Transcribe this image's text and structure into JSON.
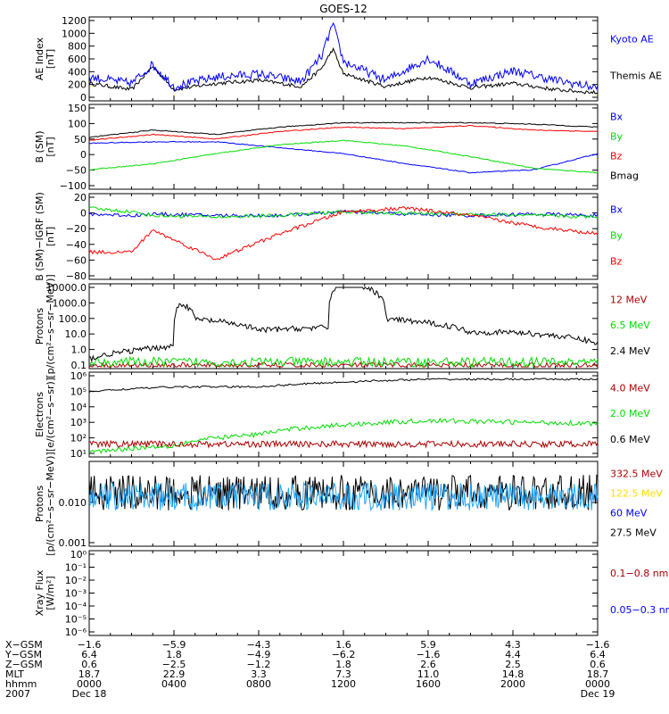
{
  "title": "GOES-12",
  "colors": {
    "black": "#000000",
    "blue": "#0000ff",
    "red": "#ff0000",
    "green": "#00dd00",
    "darkred": "#aa0000",
    "cyan": "#1fa7ff",
    "gold": "#ffdd00"
  },
  "panels": [
    {
      "id": "ae",
      "ylabel": [
        "AE Index",
        "[nT]"
      ],
      "ticks": [
        "1200",
        "1000",
        "800",
        "600",
        "400",
        "200",
        "0"
      ],
      "legend": [
        {
          "label": "Kyoto AE",
          "color": "#0000ff"
        },
        {
          "label": "Themis AE",
          "color": "#000000"
        }
      ]
    },
    {
      "id": "b",
      "ylabel": [
        "B (SM)",
        "[nT]"
      ],
      "ticks": [
        "150",
        "100",
        "50",
        "0",
        "−50",
        "−100"
      ],
      "legend": [
        {
          "label": "Bx",
          "color": "#0000ff"
        },
        {
          "label": "By",
          "color": "#00dd00"
        },
        {
          "label": "Bz",
          "color": "#ff0000"
        },
        {
          "label": "Bmag",
          "color": "#000000"
        }
      ]
    },
    {
      "id": "bdiff",
      "ylabel": [
        "B (SM)−IGRF (SM)",
        "[nT]"
      ],
      "ticks": [
        "20",
        "0",
        "−20",
        "−40",
        "−60",
        "−80"
      ],
      "legend": [
        {
          "label": "Bx",
          "color": "#0000ff"
        },
        {
          "label": "By",
          "color": "#00dd00"
        },
        {
          "label": "Bz",
          "color": "#ff0000"
        }
      ]
    },
    {
      "id": "protons",
      "ylabel": [
        "Protons",
        "[p/(cm²−s−sr−MeV)]"
      ],
      "ticks": [
        "10000.0",
        "1000.0",
        "100.0",
        "10.0",
        "1.0",
        "0.1"
      ],
      "legend": [
        {
          "label": "12 MeV",
          "color": "#aa0000"
        },
        {
          "label": "6.5 MeV",
          "color": "#00dd00"
        },
        {
          "label": "2.4 MeV",
          "color": "#000000"
        }
      ]
    },
    {
      "id": "electrons",
      "ylabel": [
        "Electrons",
        "[e/(cm²−s−sr)]"
      ],
      "ticks": [
        "10⁶",
        "10⁵",
        "10⁴",
        "10³",
        "10²",
        "10¹"
      ],
      "legend": [
        {
          "label": "4.0 MeV",
          "color": "#aa0000"
        },
        {
          "label": "2.0 MeV",
          "color": "#00dd00"
        },
        {
          "label": "0.6 MeV",
          "color": "#000000"
        }
      ]
    },
    {
      "id": "hiprotons",
      "ylabel": [
        "Protons",
        "[p/(cm²−s−sr−MeV)]"
      ],
      "ticks": [
        "0.010",
        "0.001"
      ],
      "legend": [
        {
          "label": "332.5 MeV",
          "color": "#aa0000"
        },
        {
          "label": "122.5 MeV",
          "color": "#ffdd00"
        },
        {
          "label": "60 MeV",
          "color": "#0000ff"
        },
        {
          "label": "27.5 MeV",
          "color": "#000000"
        }
      ]
    },
    {
      "id": "xray",
      "ylabel": [
        "Xray Flux",
        "[W/m²]"
      ],
      "ticks": [
        "10⁰",
        "10⁻¹",
        "10⁻²",
        "10⁻³",
        "10⁻⁴",
        "10⁻⁵",
        "10⁻⁶"
      ],
      "legend": [
        {
          "label": "0.1−0.8 nm",
          "color": "#aa0000"
        },
        {
          "label": "0.05−0.3 nm",
          "color": "#0000ff"
        }
      ]
    }
  ],
  "xaxis": {
    "row_labels": [
      "X−GSM",
      "Y−GSM",
      "Z−GSM",
      "MLT",
      "hhmm",
      "2007"
    ],
    "columns": [
      [
        "−1.6",
        "6.4",
        "0.6",
        "18.7",
        "0000",
        "Dec 18"
      ],
      [
        "−5.9",
        "1.8",
        "−2.5",
        "22.9",
        "0400",
        ""
      ],
      [
        "−4.3",
        "−4.9",
        "−1.2",
        "3.3",
        "0800",
        ""
      ],
      [
        "1.6",
        "−6.2",
        "1.8",
        "7.3",
        "1200",
        ""
      ],
      [
        "5.9",
        "−1.6",
        "2.6",
        "11.0",
        "1600",
        ""
      ],
      [
        "4.3",
        "4.4",
        "2.5",
        "14.8",
        "2000",
        ""
      ],
      [
        "−1.6",
        "6.4",
        "0.6",
        "18.7",
        "0000",
        "Dec 19"
      ]
    ]
  },
  "chart_data": [
    {
      "type": "line",
      "panel": "ae",
      "ylabel": "AE Index [nT]",
      "ylim": [
        0,
        1250
      ],
      "x_hours": [
        0,
        2,
        3,
        4,
        6,
        8,
        10,
        11,
        11.5,
        12,
        14,
        16,
        18,
        20,
        22,
        24
      ],
      "series": [
        {
          "name": "Kyoto AE",
          "values": [
            350,
            250,
            550,
            200,
            350,
            400,
            280,
            700,
            1200,
            600,
            300,
            650,
            250,
            450,
            300,
            180
          ]
        },
        {
          "name": "Themis AE",
          "values": [
            250,
            150,
            520,
            150,
            250,
            300,
            200,
            500,
            800,
            400,
            200,
            350,
            180,
            250,
            150,
            100
          ]
        }
      ]
    },
    {
      "type": "line",
      "panel": "b",
      "ylabel": "B (SM) [nT]",
      "ylim": [
        -110,
        160
      ],
      "x_hours": [
        0,
        3,
        6,
        9,
        12,
        15,
        18,
        21,
        24
      ],
      "series": [
        {
          "name": "Bx",
          "values": [
            40,
            45,
            45,
            25,
            5,
            -30,
            -60,
            -50,
            5
          ]
        },
        {
          "name": "By",
          "values": [
            -50,
            -30,
            5,
            35,
            50,
            30,
            -5,
            -45,
            -60
          ]
        },
        {
          "name": "Bz",
          "values": [
            50,
            70,
            55,
            80,
            95,
            90,
            100,
            85,
            80
          ]
        },
        {
          "name": "Bmag",
          "values": [
            60,
            85,
            70,
            95,
            110,
            110,
            110,
            105,
            95
          ]
        }
      ]
    },
    {
      "type": "line",
      "panel": "bdiff",
      "ylabel": "B (SM)−IGRF (SM) [nT]",
      "ylim": [
        -85,
        25
      ],
      "x_hours": [
        0,
        2,
        3,
        6,
        9,
        12,
        15,
        18,
        21,
        24
      ],
      "series": [
        {
          "name": "Bx",
          "values": [
            2,
            0,
            2,
            0,
            0,
            5,
            2,
            0,
            2,
            0
          ]
        },
        {
          "name": "By",
          "values": [
            10,
            5,
            0,
            -2,
            0,
            5,
            3,
            2,
            0,
            -2
          ]
        },
        {
          "name": "Bz",
          "values": [
            -50,
            -50,
            -20,
            -60,
            -25,
            5,
            10,
            0,
            -15,
            -25
          ]
        }
      ]
    },
    {
      "type": "line",
      "panel": "protons",
      "ylabel": "Protons [p/(cm²−s−sr−MeV)]",
      "ylim": [
        0.1,
        10000
      ],
      "log": true,
      "x_hours": [
        0,
        2,
        4,
        4.3,
        5,
        8,
        11.3,
        12,
        14,
        18,
        20,
        24
      ],
      "series": [
        {
          "name": "2.4 MeV",
          "values": [
            0.3,
            1,
            2,
            1000,
            100,
            20,
            30,
            20000,
            100,
            15,
            15,
            3
          ]
        },
        {
          "name": "6.5 MeV",
          "values": [
            0.2,
            0.2,
            0.2,
            0.2,
            0.2,
            0.2,
            0.2,
            0.2,
            0.2,
            0.2,
            0.2,
            0.2
          ]
        },
        {
          "name": "12 MeV",
          "values": [
            0.12,
            0.12,
            0.12,
            0.12,
            0.12,
            0.12,
            0.12,
            0.12,
            0.12,
            0.12,
            0.12,
            0.12
          ]
        }
      ]
    },
    {
      "type": "line",
      "panel": "electrons",
      "ylabel": "Electrons [e/(cm²−s−sr)]",
      "ylim": [
        10,
        1000000
      ],
      "log": true,
      "x_hours": [
        0,
        4,
        8,
        12,
        16,
        20,
        24
      ],
      "series": [
        {
          "name": "0.6 MeV",
          "values": [
            100000,
            200000,
            200000,
            400000,
            600000,
            600000,
            600000
          ]
        },
        {
          "name": "2.0 MeV",
          "values": [
            15,
            40,
            200,
            800,
            1500,
            1200,
            1000
          ]
        },
        {
          "name": "4.0 MeV",
          "values": [
            50,
            50,
            50,
            50,
            50,
            50,
            50
          ]
        }
      ]
    },
    {
      "type": "line",
      "panel": "hiprotons",
      "ylabel": "Protons [p/(cm²−s−sr−MeV)]",
      "ylim": [
        0.001,
        0.1
      ],
      "log": true,
      "x_hours": [
        0,
        24
      ],
      "series": [
        {
          "name": "27.5 MeV",
          "values": [
            0.02,
            0.02
          ]
        },
        {
          "name": "60 MeV",
          "values": [
            0.016,
            0.016
          ]
        }
      ]
    },
    {
      "type": "line",
      "panel": "xray",
      "ylabel": "Xray Flux [W/m²]",
      "ylim": [
        1e-06,
        1
      ],
      "log": true,
      "series": [
        {
          "name": "0.1−0.8 nm",
          "values": []
        },
        {
          "name": "0.05−0.3 nm",
          "values": []
        }
      ]
    }
  ]
}
